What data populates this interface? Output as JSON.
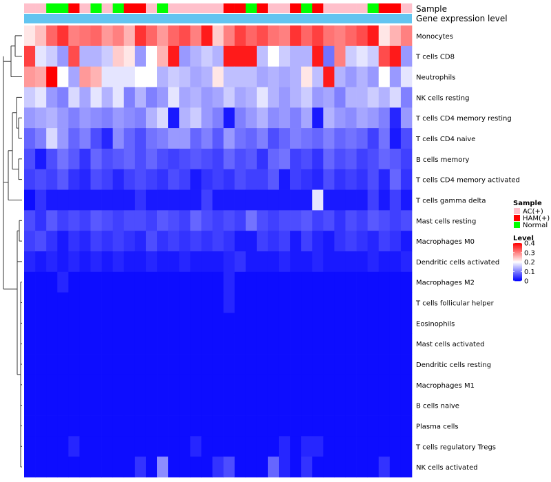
{
  "chart_data": {
    "type": "heatmap",
    "title": "",
    "annotation_rows": [
      "Sample",
      "Gene expression level"
    ],
    "row_labels": [
      "Monocytes",
      "T cells CD8",
      "Neutrophils",
      "NK cells resting",
      "T cells CD4 memory resting",
      "T cells CD4 naive",
      "B cells memory",
      "T cells CD4 memory activated",
      "T cells gamma delta",
      "Mast cells resting",
      "Macrophages M0",
      "Dendritic cells activated",
      "Macrophages M2",
      "T cells follicular helper",
      "Eosinophils",
      "Mast cells activated",
      "Dendritic cells resting",
      "Macrophages M1",
      "B cells naive",
      "Plasma cells",
      "T cells regulatory  Tregs",
      "NK cells activated"
    ],
    "sample_groups": [
      "AC(+)",
      "AC(+)",
      "Normal",
      "Normal",
      "HAM(+)",
      "AC(+)",
      "Normal",
      "AC(+)",
      "Normal",
      "HAM(+)",
      "HAM(+)",
      "AC(+)",
      "Normal",
      "AC(+)",
      "AC(+)",
      "AC(+)",
      "AC(+)",
      "AC(+)",
      "HAM(+)",
      "HAM(+)",
      "Normal",
      "HAM(+)",
      "AC(+)",
      "AC(+)",
      "HAM(+)",
      "Normal",
      "HAM(+)",
      "AC(+)",
      "AC(+)",
      "AC(+)",
      "AC(+)",
      "Normal",
      "HAM(+)",
      "HAM(+)",
      "AC(+)"
    ],
    "values": [
      [
        0.22,
        0.25,
        0.32,
        0.36,
        0.3,
        0.31,
        0.32,
        0.28,
        0.3,
        0.26,
        0.36,
        0.32,
        0.28,
        0.32,
        0.34,
        0.3,
        0.38,
        0.24,
        0.3,
        0.35,
        0.32,
        0.34,
        0.31,
        0.3,
        0.36,
        0.32,
        0.35,
        0.31,
        0.3,
        0.32,
        0.34,
        0.38,
        0.22,
        0.26,
        0.3
      ],
      [
        0.35,
        0.18,
        0.16,
        0.12,
        0.34,
        0.14,
        0.14,
        0.16,
        0.24,
        0.22,
        0.12,
        0.2,
        0.26,
        0.38,
        0.12,
        0.14,
        0.16,
        0.14,
        0.38,
        0.38,
        0.38,
        0.15,
        0.2,
        0.16,
        0.14,
        0.14,
        0.38,
        0.09,
        0.3,
        0.16,
        0.18,
        0.16,
        0.34,
        0.38,
        0.12
      ],
      [
        0.28,
        0.27,
        0.4,
        0.2,
        0.13,
        0.28,
        0.26,
        0.18,
        0.18,
        0.18,
        0.2,
        0.2,
        0.14,
        0.16,
        0.15,
        0.13,
        0.14,
        0.22,
        0.15,
        0.15,
        0.15,
        0.13,
        0.14,
        0.13,
        0.14,
        0.22,
        0.15,
        0.38,
        0.14,
        0.12,
        0.14,
        0.12,
        0.2,
        0.12,
        0.18
      ],
      [
        0.16,
        0.18,
        0.12,
        0.1,
        0.17,
        0.13,
        0.18,
        0.14,
        0.18,
        0.1,
        0.14,
        0.1,
        0.12,
        0.18,
        0.13,
        0.14,
        0.12,
        0.13,
        0.16,
        0.13,
        0.14,
        0.18,
        0.14,
        0.12,
        0.14,
        0.16,
        0.12,
        0.13,
        0.1,
        0.14,
        0.14,
        0.16,
        0.14,
        0.17,
        0.1
      ],
      [
        0.12,
        0.13,
        0.14,
        0.12,
        0.1,
        0.12,
        0.11,
        0.1,
        0.12,
        0.11,
        0.1,
        0.14,
        0.17,
        0.02,
        0.14,
        0.16,
        0.12,
        0.1,
        0.02,
        0.1,
        0.12,
        0.14,
        0.11,
        0.12,
        0.1,
        0.13,
        0.02,
        0.14,
        0.12,
        0.11,
        0.13,
        0.12,
        0.1,
        0.03,
        0.12
      ],
      [
        0.08,
        0.1,
        0.17,
        0.12,
        0.08,
        0.1,
        0.06,
        0.03,
        0.11,
        0.08,
        0.06,
        0.09,
        0.1,
        0.12,
        0.12,
        0.08,
        0.1,
        0.07,
        0.12,
        0.09,
        0.08,
        0.1,
        0.06,
        0.08,
        0.1,
        0.09,
        0.08,
        0.1,
        0.08,
        0.09,
        0.08,
        0.05,
        0.09,
        0.02,
        0.06
      ],
      [
        0.06,
        0.02,
        0.06,
        0.09,
        0.07,
        0.04,
        0.08,
        0.06,
        0.07,
        0.08,
        0.06,
        0.08,
        0.06,
        0.05,
        0.06,
        0.07,
        0.06,
        0.05,
        0.08,
        0.06,
        0.07,
        0.04,
        0.08,
        0.09,
        0.05,
        0.06,
        0.04,
        0.08,
        0.06,
        0.07,
        0.05,
        0.06,
        0.08,
        0.07,
        0.05
      ],
      [
        0.05,
        0.06,
        0.05,
        0.07,
        0.04,
        0.03,
        0.06,
        0.05,
        0.03,
        0.05,
        0.06,
        0.05,
        0.04,
        0.06,
        0.05,
        0.02,
        0.04,
        0.05,
        0.04,
        0.06,
        0.05,
        0.05,
        0.07,
        0.02,
        0.05,
        0.04,
        0.03,
        0.06,
        0.04,
        0.05,
        0.04,
        0.06,
        0.03,
        0.08,
        0.04
      ],
      [
        0.01,
        0.04,
        0.02,
        0.02,
        0.02,
        0.02,
        0.02,
        0.02,
        0.02,
        0.02,
        0.04,
        0.02,
        0.02,
        0.02,
        0.02,
        0.02,
        0.05,
        0.02,
        0.02,
        0.02,
        0.02,
        0.02,
        0.02,
        0.02,
        0.02,
        0.02,
        0.18,
        0.02,
        0.02,
        0.02,
        0.02,
        0.05,
        0.02,
        0.05,
        0.02
      ],
      [
        0.06,
        0.04,
        0.07,
        0.05,
        0.06,
        0.05,
        0.07,
        0.06,
        0.05,
        0.06,
        0.06,
        0.05,
        0.07,
        0.06,
        0.05,
        0.08,
        0.06,
        0.05,
        0.06,
        0.05,
        0.09,
        0.06,
        0.05,
        0.06,
        0.06,
        0.07,
        0.05,
        0.06,
        0.04,
        0.06,
        0.05,
        0.07,
        0.06,
        0.05,
        0.06
      ],
      [
        0.05,
        0.06,
        0.04,
        0.02,
        0.04,
        0.03,
        0.05,
        0.04,
        0.05,
        0.04,
        0.03,
        0.06,
        0.04,
        0.05,
        0.04,
        0.05,
        0.04,
        0.05,
        0.04,
        0.02,
        0.02,
        0.05,
        0.04,
        0.05,
        0.02,
        0.05,
        0.03,
        0.02,
        0.04,
        0.05,
        0.04,
        0.03,
        0.05,
        0.04,
        0.02
      ],
      [
        0.03,
        0.02,
        0.03,
        0.02,
        0.03,
        0.02,
        0.03,
        0.02,
        0.03,
        0.02,
        0.02,
        0.03,
        0.02,
        0.02,
        0.03,
        0.02,
        0.02,
        0.02,
        0.03,
        0.04,
        0.02,
        0.02,
        0.02,
        0.03,
        0.02,
        0.02,
        0.03,
        0.02,
        0.02,
        0.02,
        0.02,
        0.03,
        0.02,
        0.02,
        0.03
      ],
      [
        0.01,
        0.01,
        0.01,
        0.03,
        0.01,
        0.01,
        0.01,
        0.01,
        0.01,
        0.01,
        0.01,
        0.01,
        0.01,
        0.01,
        0.01,
        0.01,
        0.01,
        0.01,
        0.03,
        0.01,
        0.01,
        0.01,
        0.01,
        0.01,
        0.01,
        0.01,
        0.01,
        0.01,
        0.01,
        0.01,
        0.01,
        0.01,
        0.01,
        0.01,
        0.01
      ],
      [
        0.01,
        0.01,
        0.01,
        0.01,
        0.01,
        0.01,
        0.01,
        0.01,
        0.01,
        0.01,
        0.01,
        0.01,
        0.01,
        0.01,
        0.01,
        0.01,
        0.01,
        0.01,
        0.03,
        0.01,
        0.01,
        0.01,
        0.01,
        0.01,
        0.01,
        0.01,
        0.01,
        0.01,
        0.01,
        0.01,
        0.01,
        0.01,
        0.01,
        0.01,
        0.01
      ],
      [
        0.01,
        0.01,
        0.01,
        0.01,
        0.01,
        0.01,
        0.01,
        0.01,
        0.01,
        0.01,
        0.01,
        0.01,
        0.01,
        0.01,
        0.01,
        0.01,
        0.01,
        0.01,
        0.01,
        0.01,
        0.01,
        0.01,
        0.01,
        0.01,
        0.01,
        0.01,
        0.01,
        0.01,
        0.01,
        0.01,
        0.01,
        0.01,
        0.01,
        0.01,
        0.01
      ],
      [
        0.01,
        0.01,
        0.01,
        0.01,
        0.01,
        0.01,
        0.01,
        0.01,
        0.01,
        0.01,
        0.01,
        0.01,
        0.01,
        0.01,
        0.01,
        0.01,
        0.01,
        0.01,
        0.01,
        0.01,
        0.01,
        0.01,
        0.01,
        0.01,
        0.01,
        0.01,
        0.01,
        0.01,
        0.01,
        0.01,
        0.01,
        0.01,
        0.01,
        0.01,
        0.01
      ],
      [
        0.01,
        0.01,
        0.01,
        0.01,
        0.01,
        0.01,
        0.01,
        0.01,
        0.01,
        0.01,
        0.01,
        0.01,
        0.01,
        0.01,
        0.01,
        0.01,
        0.01,
        0.01,
        0.01,
        0.01,
        0.01,
        0.01,
        0.01,
        0.01,
        0.01,
        0.01,
        0.01,
        0.01,
        0.01,
        0.01,
        0.01,
        0.01,
        0.01,
        0.01,
        0.01
      ],
      [
        0.01,
        0.01,
        0.01,
        0.01,
        0.01,
        0.01,
        0.01,
        0.01,
        0.01,
        0.01,
        0.01,
        0.01,
        0.01,
        0.01,
        0.01,
        0.01,
        0.01,
        0.01,
        0.01,
        0.01,
        0.01,
        0.01,
        0.01,
        0.01,
        0.01,
        0.01,
        0.01,
        0.01,
        0.01,
        0.01,
        0.01,
        0.01,
        0.01,
        0.01,
        0.01
      ],
      [
        0.01,
        0.01,
        0.01,
        0.01,
        0.01,
        0.01,
        0.01,
        0.01,
        0.01,
        0.01,
        0.01,
        0.01,
        0.01,
        0.01,
        0.01,
        0.01,
        0.01,
        0.01,
        0.01,
        0.01,
        0.01,
        0.01,
        0.01,
        0.01,
        0.01,
        0.01,
        0.01,
        0.01,
        0.01,
        0.01,
        0.01,
        0.01,
        0.01,
        0.01,
        0.01
      ],
      [
        0.01,
        0.01,
        0.01,
        0.01,
        0.01,
        0.01,
        0.01,
        0.01,
        0.01,
        0.01,
        0.01,
        0.01,
        0.01,
        0.01,
        0.01,
        0.01,
        0.01,
        0.01,
        0.01,
        0.01,
        0.01,
        0.01,
        0.01,
        0.01,
        0.01,
        0.01,
        0.01,
        0.01,
        0.01,
        0.01,
        0.01,
        0.01,
        0.01,
        0.01,
        0.01
      ],
      [
        0.01,
        0.01,
        0.01,
        0.01,
        0.03,
        0.01,
        0.01,
        0.01,
        0.01,
        0.01,
        0.01,
        0.01,
        0.01,
        0.01,
        0.01,
        0.03,
        0.01,
        0.01,
        0.01,
        0.01,
        0.01,
        0.01,
        0.01,
        0.03,
        0.01,
        0.03,
        0.03,
        0.01,
        0.01,
        0.01,
        0.01,
        0.01,
        0.01,
        0.01,
        0.01
      ],
      [
        0.01,
        0.01,
        0.01,
        0.01,
        0.01,
        0.01,
        0.01,
        0.01,
        0.01,
        0.01,
        0.04,
        0.01,
        0.11,
        0.01,
        0.01,
        0.01,
        0.01,
        0.04,
        0.06,
        0.01,
        0.01,
        0.01,
        0.08,
        0.03,
        0.01,
        0.04,
        0.01,
        0.01,
        0.01,
        0.01,
        0.01,
        0.01,
        0.04,
        0.01,
        0.01
      ]
    ],
    "legend": {
      "sample": {
        "title": "Sample",
        "items": [
          {
            "label": "AC(+)",
            "color": "#FFC0CB"
          },
          {
            "label": "HAM(+)",
            "color": "#FF0000"
          },
          {
            "label": "Normal",
            "color": "#00FF00"
          }
        ]
      },
      "level": {
        "title": "Level",
        "ticks": [
          "0.4",
          "0.3",
          "0.2",
          "0.1",
          "0"
        ],
        "range": [
          0,
          0.4
        ]
      }
    },
    "annotation_colors": {
      "gene_expression_level": "#62C4F0"
    },
    "colorscale": {
      "low": "#0000FF",
      "mid": "#FFFFFF",
      "high": "#FF0000",
      "mid_value": 0.2
    },
    "legend_position": "right"
  }
}
